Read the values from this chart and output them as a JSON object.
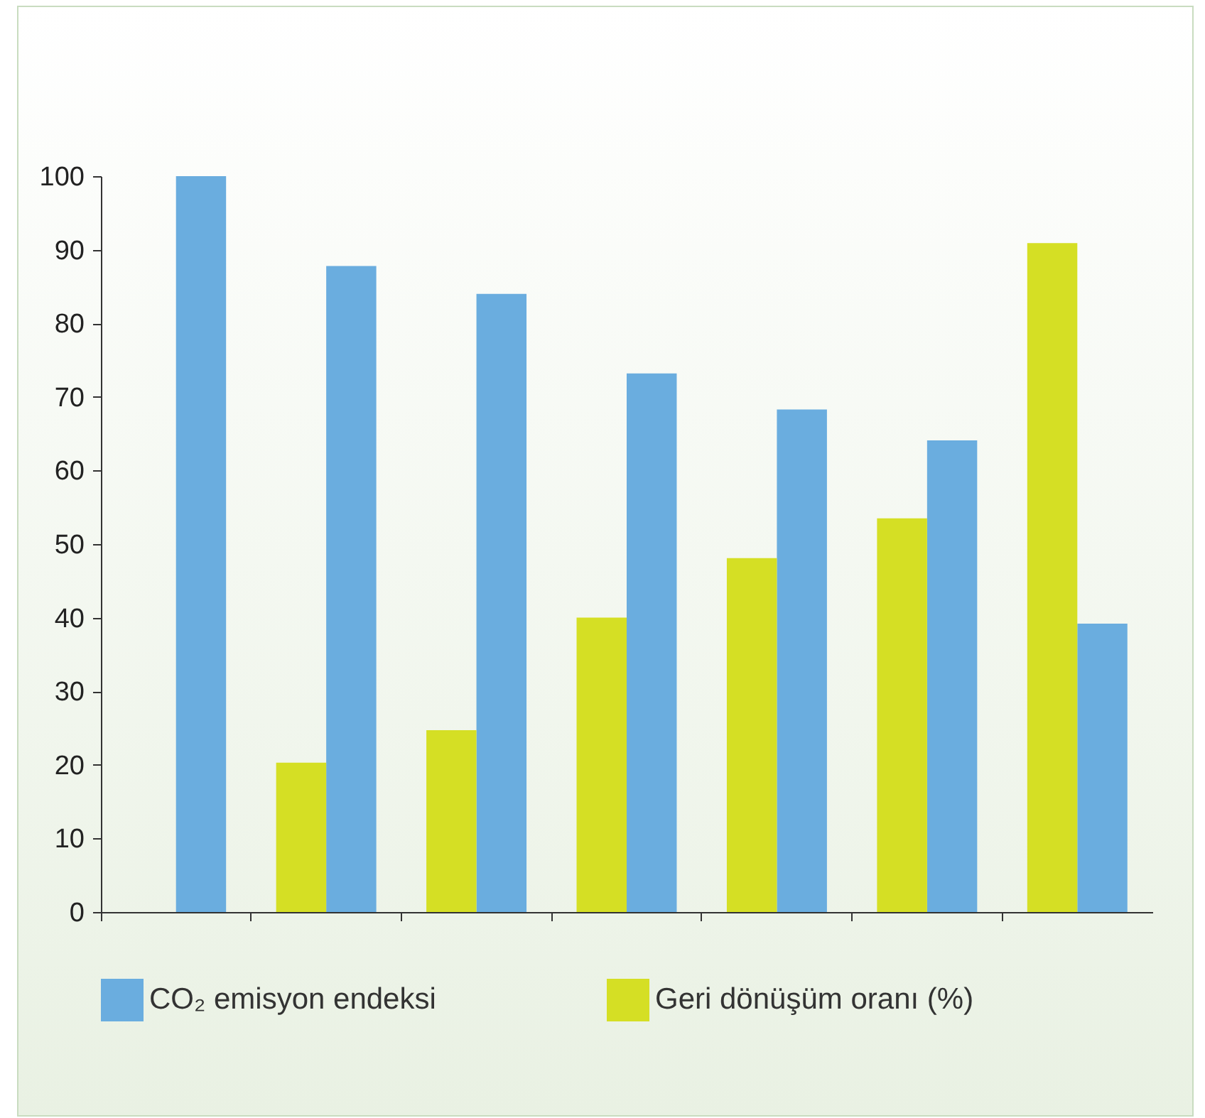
{
  "chart_data": {
    "type": "bar",
    "categories": [
      null,
      null,
      null,
      null,
      null,
      null,
      null
    ],
    "series": [
      {
        "name": "CO₂ emisyon endeksi",
        "color": "#6aaddf",
        "values": [
          100,
          87.8,
          84,
          73.2,
          68.3,
          64.1,
          39.2
        ]
      },
      {
        "name": "Geri dönüşüm oranı (%)",
        "color": "#d5df24",
        "values": [
          null,
          20.3,
          24.7,
          40,
          48.1,
          53.5,
          90.9
        ]
      }
    ],
    "ylim": [
      0,
      100
    ],
    "yticks": [
      0,
      10,
      20,
      30,
      40,
      50,
      60,
      70,
      80,
      90,
      100
    ],
    "grid": false,
    "legend": "bottom"
  }
}
